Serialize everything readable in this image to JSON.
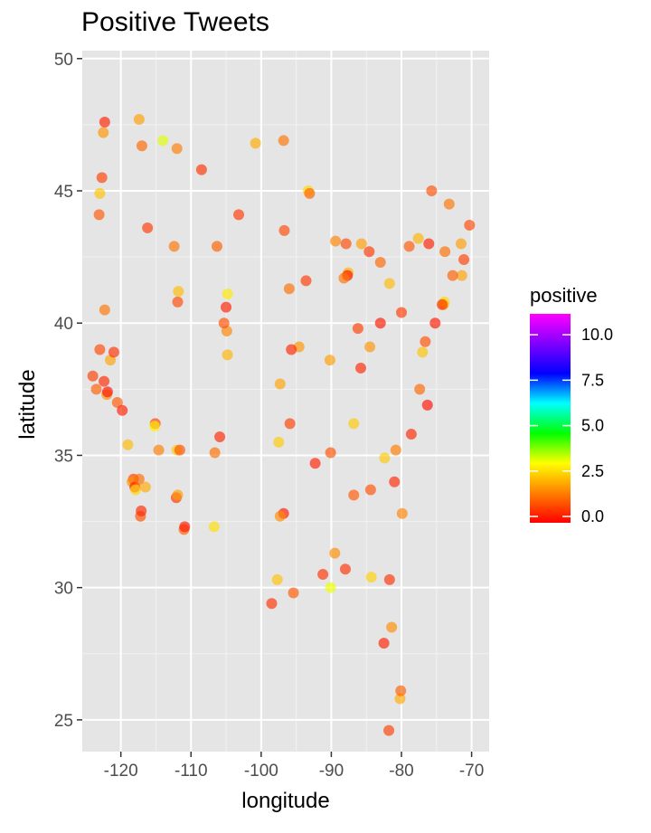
{
  "chart_data": {
    "type": "scatter",
    "title": "Positive Tweets",
    "xlabel": "longitude",
    "ylabel": "latitude",
    "xlim": [
      -125.5,
      -67.5
    ],
    "ylim": [
      23.8,
      50.3
    ],
    "x_ticks": [
      -120,
      -110,
      -100,
      -90,
      -80,
      -70
    ],
    "x_tick_labels": [
      "-120",
      "-110",
      "-100",
      "-90",
      "-80",
      "-70"
    ],
    "y_ticks": [
      25,
      30,
      35,
      40,
      45,
      50
    ],
    "y_tick_labels": [
      "25",
      "30",
      "35",
      "40",
      "45",
      "50"
    ],
    "grid": true,
    "background": "#e5e5e5",
    "legend": {
      "title": "positive",
      "placement": "right",
      "range": [
        0,
        11.5
      ],
      "ticks": [
        0,
        2.5,
        5,
        7.5,
        10
      ],
      "tick_labels": [
        "0.0",
        "2.5",
        "5.0",
        "7.5",
        "10.0"
      ],
      "colors": [
        "#ff0000",
        "#ff8000",
        "#ffff00",
        "#00ff00",
        "#00ffff",
        "#0000ff",
        "#8000ff",
        "#ff00ff"
      ]
    },
    "points": [
      [
        -124.0,
        38.0,
        0.8
      ],
      [
        -123.5,
        37.5,
        1.2
      ],
      [
        -122.4,
        37.8,
        0.5
      ],
      [
        -122.0,
        37.3,
        1.8
      ],
      [
        -121.9,
        37.4,
        0.2
      ],
      [
        -122.3,
        40.5,
        1.5
      ],
      [
        -123.0,
        39.0,
        0.9
      ],
      [
        -121.5,
        38.6,
        2.1
      ],
      [
        -121.0,
        38.9,
        0.6
      ],
      [
        -120.5,
        37.0,
        1.1
      ],
      [
        -119.8,
        36.7,
        0.4
      ],
      [
        -119.0,
        35.4,
        2.4
      ],
      [
        -118.2,
        34.1,
        0.7
      ],
      [
        -118.4,
        34.0,
        1.9
      ],
      [
        -118.0,
        33.8,
        0.3
      ],
      [
        -117.9,
        33.7,
        2.8
      ],
      [
        -117.2,
        32.7,
        1.0
      ],
      [
        -117.1,
        32.9,
        0.5
      ],
      [
        -116.5,
        33.8,
        2.2
      ],
      [
        -117.4,
        34.1,
        1.4
      ],
      [
        -115.1,
        36.2,
        0.8
      ],
      [
        -115.2,
        36.1,
        3.1
      ],
      [
        -114.6,
        35.2,
        1.6
      ],
      [
        -112.1,
        33.4,
        0.6
      ],
      [
        -111.9,
        33.5,
        2.0
      ],
      [
        -111.0,
        32.2,
        1.2
      ],
      [
        -110.9,
        32.3,
        0.3
      ],
      [
        -112.0,
        35.2,
        2.6
      ],
      [
        -111.6,
        35.2,
        1.0
      ],
      [
        -111.9,
        40.8,
        0.9
      ],
      [
        -111.8,
        41.2,
        2.4
      ],
      [
        -112.4,
        42.9,
        1.5
      ],
      [
        -116.2,
        43.6,
        0.7
      ],
      [
        -117.4,
        47.7,
        2.0
      ],
      [
        -117.0,
        46.7,
        1.3
      ],
      [
        -122.3,
        47.6,
        0.4
      ],
      [
        -122.5,
        47.2,
        1.9
      ],
      [
        -122.7,
        45.5,
        0.8
      ],
      [
        -123.0,
        44.9,
        2.5
      ],
      [
        -123.1,
        44.1,
        1.1
      ],
      [
        -114.0,
        46.9,
        3.5
      ],
      [
        -112.0,
        46.6,
        1.6
      ],
      [
        -108.5,
        45.8,
        0.6
      ],
      [
        -106.6,
        35.1,
        1.4
      ],
      [
        -106.7,
        32.3,
        2.9
      ],
      [
        -105.9,
        35.7,
        0.5
      ],
      [
        -104.9,
        39.7,
        1.7
      ],
      [
        -105.0,
        40.6,
        0.4
      ],
      [
        -104.8,
        38.8,
        2.3
      ],
      [
        -105.3,
        40.0,
        1.0
      ],
      [
        -104.8,
        41.1,
        3.0
      ],
      [
        -106.3,
        42.9,
        1.2
      ],
      [
        -103.2,
        44.1,
        0.7
      ],
      [
        -100.8,
        46.8,
        2.2
      ],
      [
        -96.8,
        46.9,
        1.5
      ],
      [
        -96.7,
        43.5,
        0.9
      ],
      [
        -98.5,
        29.4,
        0.6
      ],
      [
        -97.7,
        30.3,
        2.5
      ],
      [
        -95.4,
        29.8,
        1.1
      ],
      [
        -96.8,
        32.8,
        0.3
      ],
      [
        -97.3,
        32.7,
        1.8
      ],
      [
        -97.5,
        35.5,
        2.6
      ],
      [
        -95.9,
        36.2,
        0.8
      ],
      [
        -94.6,
        39.1,
        1.9
      ],
      [
        -95.7,
        39.0,
        0.5
      ],
      [
        -97.3,
        37.7,
        2.1
      ],
      [
        -96.0,
        41.3,
        1.4
      ],
      [
        -93.6,
        41.6,
        0.7
      ],
      [
        -93.3,
        45.0,
        2.8
      ],
      [
        -93.1,
        44.9,
        1.2
      ],
      [
        -92.3,
        34.7,
        0.4
      ],
      [
        -90.2,
        38.6,
        2.0
      ],
      [
        -90.1,
        35.1,
        1.0
      ],
      [
        -90.1,
        30.0,
        3.4
      ],
      [
        -91.2,
        30.5,
        0.6
      ],
      [
        -89.4,
        43.1,
        1.7
      ],
      [
        -87.9,
        43.0,
        0.9
      ],
      [
        -87.6,
        41.9,
        2.3
      ],
      [
        -87.7,
        41.8,
        0.2
      ],
      [
        -88.2,
        41.7,
        1.5
      ],
      [
        -86.2,
        39.8,
        0.8
      ],
      [
        -86.8,
        36.2,
        2.6
      ],
      [
        -86.8,
        33.5,
        1.1
      ],
      [
        -85.8,
        38.3,
        0.5
      ],
      [
        -84.5,
        39.1,
        1.9
      ],
      [
        -83.0,
        40.0,
        0.3
      ],
      [
        -81.7,
        41.5,
        2.4
      ],
      [
        -83.0,
        42.3,
        1.3
      ],
      [
        -84.6,
        42.7,
        0.7
      ],
      [
        -85.7,
        43.0,
        2.0
      ],
      [
        -84.4,
        33.7,
        1.0
      ],
      [
        -84.3,
        30.4,
        2.7
      ],
      [
        -81.7,
        30.3,
        0.6
      ],
      [
        -81.4,
        28.5,
        1.8
      ],
      [
        -82.5,
        27.9,
        0.4
      ],
      [
        -80.2,
        25.8,
        2.2
      ],
      [
        -80.1,
        26.1,
        1.2
      ],
      [
        -81.8,
        24.6,
        0.8
      ],
      [
        -80.8,
        35.2,
        1.6
      ],
      [
        -78.6,
        35.8,
        0.5
      ],
      [
        -77.0,
        38.9,
        2.5
      ],
      [
        -76.6,
        39.3,
        1.0
      ],
      [
        -75.2,
        40.0,
        0.3
      ],
      [
        -74.0,
        40.7,
        1.9
      ],
      [
        -73.9,
        40.8,
        2.8
      ],
      [
        -74.2,
        40.7,
        0.6
      ],
      [
        -73.8,
        42.7,
        1.4
      ],
      [
        -71.1,
        42.4,
        0.8
      ],
      [
        -71.4,
        41.8,
        2.1
      ],
      [
        -72.7,
        41.8,
        1.2
      ],
      [
        -76.1,
        43.0,
        0.4
      ],
      [
        -77.6,
        43.2,
        2.3
      ],
      [
        -78.9,
        42.9,
        1.1
      ],
      [
        -80.0,
        40.4,
        0.7
      ],
      [
        -79.9,
        32.8,
        1.7
      ],
      [
        -81.0,
        34.0,
        0.5
      ],
      [
        -82.4,
        34.9,
        2.6
      ],
      [
        -77.4,
        37.5,
        1.3
      ],
      [
        -76.3,
        36.9,
        0.2
      ],
      [
        -73.2,
        44.5,
        1.5
      ],
      [
        -70.3,
        43.7,
        0.9
      ],
      [
        -71.5,
        43.0,
        2.0
      ],
      [
        -75.7,
        45.0,
        1.0
      ],
      [
        -88.0,
        30.7,
        0.6
      ],
      [
        -89.5,
        31.3,
        1.8
      ]
    ]
  }
}
